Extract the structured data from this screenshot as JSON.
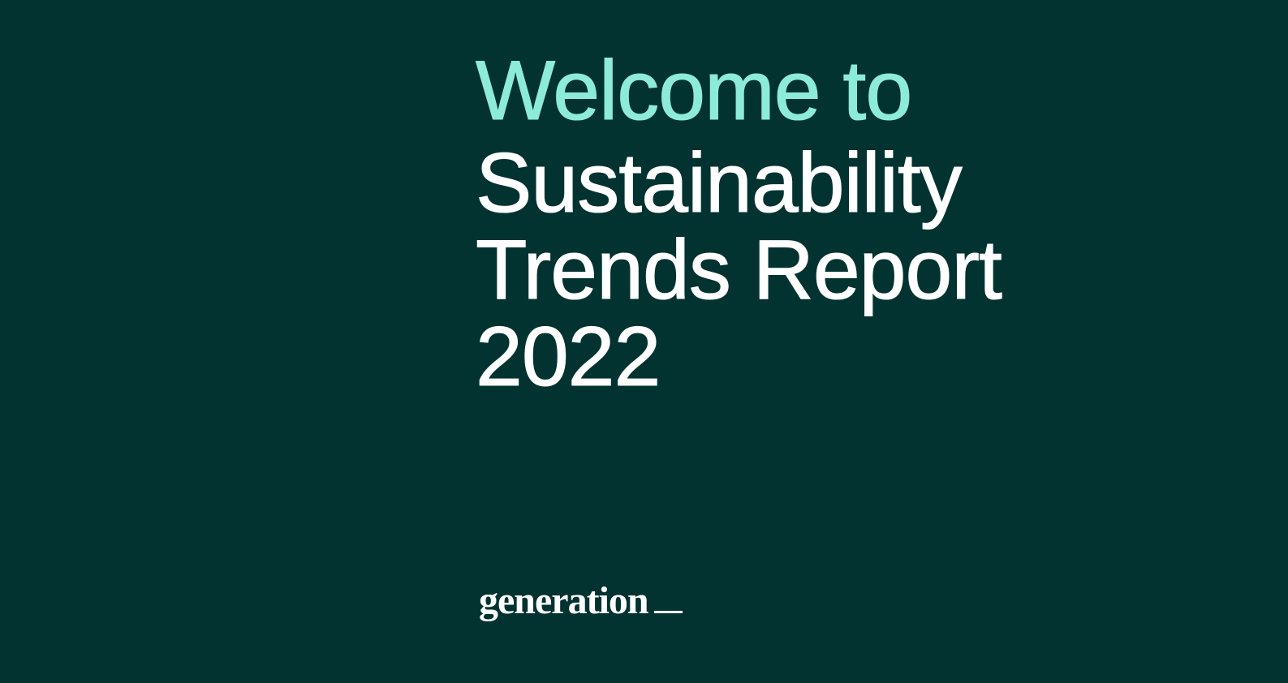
{
  "palette": {
    "background": "#023330",
    "accent": "#8DEBD9",
    "text": "#FFFFFF"
  },
  "cover": {
    "greeting": "Welcome to",
    "title_lines": [
      "Sustainability",
      "Trends Report",
      "2022"
    ]
  },
  "logo": {
    "wordmark": "generation",
    "underscore_glyph": "__"
  }
}
